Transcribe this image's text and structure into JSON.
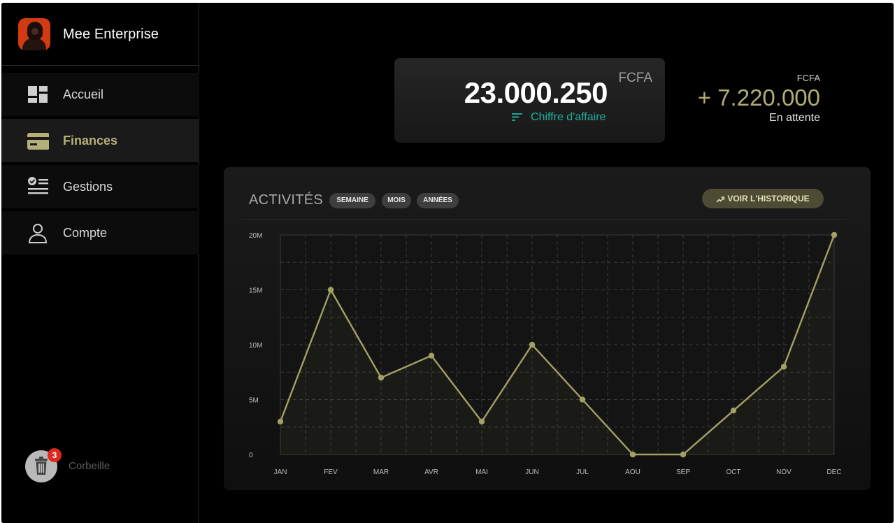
{
  "sidebar": {
    "brand_name": "Mee Enterprise",
    "items": [
      {
        "label": "Accueil",
        "icon": "dashboard-icon"
      },
      {
        "label": "Finances",
        "icon": "card-icon"
      },
      {
        "label": "Gestions",
        "icon": "checklist-icon"
      },
      {
        "label": "Compte",
        "icon": "person-icon"
      }
    ],
    "trash": {
      "label": "Corbeille",
      "badge": "3",
      "icon": "trash-icon"
    }
  },
  "summary": {
    "revenue": {
      "value": "23.000.250",
      "currency": "FCFA",
      "label": "Chiffre d'affaire",
      "icon": "sort-lines-icon"
    },
    "pending": {
      "currency": "FCFA",
      "value": "+ 7.220.000",
      "label": "En attente"
    }
  },
  "activity": {
    "title": "ACTIVITÉS",
    "filters": [
      "SEMAINE",
      "MOIS",
      "ANNÉES"
    ],
    "history_button": {
      "label": "VOIR L'HISTORIQUE",
      "icon": "trending-up-icon"
    }
  },
  "colors": {
    "accent": "#b5b07a",
    "teal": "#1fb2a0",
    "badge": "#e0271f",
    "line": "#a3a063"
  },
  "chart_data": {
    "type": "line",
    "title": "ACTIVITÉS",
    "categories": [
      "JAN",
      "FEV",
      "MAR",
      "AVR",
      "MAI",
      "JUN",
      "JUL",
      "AOU",
      "SEP",
      "OCT",
      "NOV",
      "DEC"
    ],
    "series": [
      {
        "name": "Activités",
        "values": [
          3000000,
          15000000,
          7000000,
          9000000,
          3000000,
          10000000,
          5000000,
          0,
          0,
          4000000,
          8000000,
          20000000
        ]
      }
    ],
    "y_ticks": [
      {
        "value": 0,
        "label": "0"
      },
      {
        "value": 5000000,
        "label": "5M"
      },
      {
        "value": 10000000,
        "label": "10M"
      },
      {
        "value": 15000000,
        "label": "15M"
      },
      {
        "value": 20000000,
        "label": "20M"
      }
    ],
    "ylim": [
      0,
      20000000
    ],
    "xlabel": "",
    "ylabel": "",
    "grid": true
  }
}
